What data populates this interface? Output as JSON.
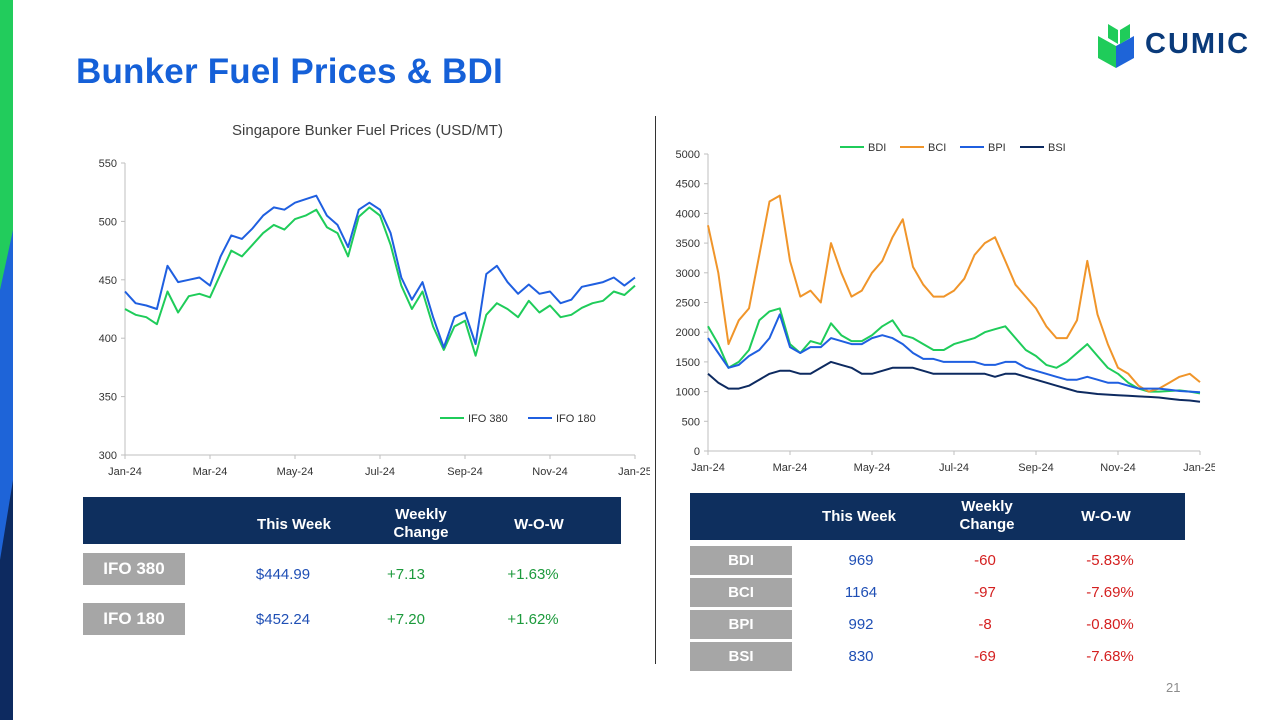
{
  "title": "Bunker Fuel Prices & BDI",
  "logo": {
    "text": "CUMIC"
  },
  "page_number": "21",
  "colors": {
    "title": "#1560d8",
    "header_bg": "#0e2f5e",
    "row_label_bg": "#a6a6a6",
    "green": "#1c9a3c",
    "blue": "#1f4fb5",
    "red": "#d42020"
  },
  "chart_data": [
    {
      "type": "line",
      "title": "Singapore Bunker Fuel Prices (USD/MT)",
      "xlabel": "",
      "ylabel": "",
      "x_tick_labels": [
        "Jan-24",
        "Mar-24",
        "May-24",
        "Jul-24",
        "Sep-24",
        "Nov-24",
        "Jan-25"
      ],
      "ylim": [
        300,
        550
      ],
      "y_ticks": [
        300,
        350,
        400,
        450,
        500,
        550
      ],
      "legend": "bottom-right",
      "grid": false,
      "x": [
        0,
        0.25,
        0.5,
        0.75,
        1,
        1.25,
        1.5,
        1.75,
        2,
        2.25,
        2.5,
        2.75,
        3,
        3.25,
        3.5,
        3.75,
        4,
        4.25,
        4.5,
        4.75,
        5,
        5.25,
        5.5,
        5.75,
        6,
        6.25,
        6.5,
        6.75,
        7,
        7.25,
        7.5,
        7.75,
        8,
        8.25,
        8.5,
        8.75,
        9,
        9.25,
        9.5,
        9.75,
        10,
        10.25,
        10.5,
        10.75,
        11,
        11.25,
        11.5,
        11.75,
        12
      ],
      "series": [
        {
          "name": "IFO 380",
          "color": "#1fcc5a",
          "values": [
            425,
            420,
            418,
            412,
            440,
            422,
            436,
            438,
            435,
            455,
            475,
            470,
            480,
            490,
            497,
            493,
            502,
            505,
            510,
            495,
            490,
            470,
            504,
            512,
            505,
            480,
            445,
            425,
            440,
            410,
            390,
            410,
            415,
            385,
            420,
            430,
            425,
            418,
            432,
            422,
            428,
            418,
            420,
            426,
            430,
            432,
            440,
            437,
            445
          ]
        },
        {
          "name": "IFO 180",
          "color": "#1f5fe0",
          "values": [
            440,
            430,
            428,
            425,
            462,
            448,
            450,
            452,
            445,
            470,
            488,
            485,
            494,
            505,
            512,
            510,
            516,
            519,
            522,
            505,
            497,
            478,
            510,
            516,
            510,
            490,
            452,
            433,
            448,
            418,
            392,
            418,
            422,
            395,
            455,
            462,
            448,
            438,
            446,
            438,
            440,
            430,
            433,
            444,
            446,
            448,
            452,
            445,
            452
          ]
        }
      ]
    },
    {
      "type": "line",
      "title": "",
      "xlabel": "",
      "ylabel": "",
      "x_tick_labels": [
        "Jan-24",
        "Mar-24",
        "May-24",
        "Jul-24",
        "Sep-24",
        "Nov-24",
        "Jan-25"
      ],
      "ylim": [
        0,
        5000
      ],
      "y_ticks": [
        0,
        500,
        1000,
        1500,
        2000,
        2500,
        3000,
        3500,
        4000,
        4500,
        5000
      ],
      "legend": "top",
      "grid": false,
      "x": [
        0,
        0.25,
        0.5,
        0.75,
        1,
        1.25,
        1.5,
        1.75,
        2,
        2.25,
        2.5,
        2.75,
        3,
        3.25,
        3.5,
        3.75,
        4,
        4.25,
        4.5,
        4.75,
        5,
        5.25,
        5.5,
        5.75,
        6,
        6.25,
        6.5,
        6.75,
        7,
        7.25,
        7.5,
        7.75,
        8,
        8.25,
        8.5,
        8.75,
        9,
        9.25,
        9.5,
        9.75,
        10,
        10.25,
        10.5,
        10.75,
        11,
        11.25,
        11.5,
        11.75,
        12
      ],
      "series": [
        {
          "name": "BDI",
          "color": "#1fcc5a",
          "values": [
            2100,
            1800,
            1400,
            1500,
            1700,
            2200,
            2350,
            2400,
            1800,
            1650,
            1850,
            1800,
            2150,
            1950,
            1850,
            1850,
            1950,
            2100,
            2200,
            1950,
            1900,
            1800,
            1700,
            1700,
            1800,
            1850,
            1900,
            2000,
            2050,
            2100,
            1900,
            1700,
            1600,
            1450,
            1400,
            1500,
            1650,
            1800,
            1600,
            1400,
            1300,
            1150,
            1050,
            1000,
            1000,
            1010,
            1020,
            1000,
            970
          ]
        },
        {
          "name": "BCI",
          "color": "#f0952a",
          "values": [
            3800,
            3000,
            1800,
            2200,
            2400,
            3300,
            4200,
            4300,
            3200,
            2600,
            2700,
            2500,
            3500,
            3000,
            2600,
            2700,
            3000,
            3200,
            3600,
            3900,
            3100,
            2800,
            2600,
            2600,
            2700,
            2900,
            3300,
            3500,
            3600,
            3200,
            2800,
            2600,
            2400,
            2100,
            1900,
            1900,
            2200,
            3200,
            2300,
            1800,
            1400,
            1300,
            1100,
            1000,
            1050,
            1150,
            1250,
            1300,
            1160
          ]
        },
        {
          "name": "BPI",
          "color": "#1f5fe0",
          "values": [
            1900,
            1650,
            1400,
            1450,
            1600,
            1700,
            1900,
            2300,
            1750,
            1650,
            1750,
            1750,
            1900,
            1850,
            1800,
            1800,
            1900,
            1950,
            1900,
            1800,
            1650,
            1550,
            1550,
            1500,
            1500,
            1500,
            1500,
            1450,
            1450,
            1500,
            1500,
            1400,
            1350,
            1300,
            1250,
            1200,
            1200,
            1250,
            1200,
            1150,
            1150,
            1100,
            1050,
            1050,
            1050,
            1030,
            1010,
            1000,
            990
          ]
        },
        {
          "name": "BSI",
          "color": "#0d2a60",
          "values": [
            1300,
            1150,
            1050,
            1050,
            1100,
            1200,
            1300,
            1350,
            1350,
            1300,
            1300,
            1400,
            1500,
            1450,
            1400,
            1300,
            1300,
            1350,
            1400,
            1400,
            1400,
            1350,
            1300,
            1300,
            1300,
            1300,
            1300,
            1300,
            1250,
            1300,
            1300,
            1250,
            1200,
            1150,
            1100,
            1050,
            1000,
            980,
            960,
            950,
            940,
            930,
            920,
            910,
            900,
            880,
            860,
            850,
            830
          ]
        }
      ]
    }
  ],
  "table_fuel": {
    "headers": [
      "This Week",
      "Weekly Change",
      "W-O-W"
    ],
    "rows": [
      {
        "label": "IFO 380",
        "this_week": "$444.99",
        "weekly_change": "+7.13",
        "wow": "+1.63%"
      },
      {
        "label": "IFO 180",
        "this_week": "$452.24",
        "weekly_change": "+7.20",
        "wow": "+1.62%"
      }
    ]
  },
  "table_bdi": {
    "headers": [
      "This Week",
      "Weekly Change",
      "W-O-W"
    ],
    "rows": [
      {
        "label": "BDI",
        "this_week": "969",
        "weekly_change": "-60",
        "wow": "-5.83%"
      },
      {
        "label": "BCI",
        "this_week": "1164",
        "weekly_change": "-97",
        "wow": "-7.69%"
      },
      {
        "label": "BPI",
        "this_week": "992",
        "weekly_change": "-8",
        "wow": "-0.80%"
      },
      {
        "label": "BSI",
        "this_week": "830",
        "weekly_change": "-69",
        "wow": "-7.68%"
      }
    ]
  }
}
